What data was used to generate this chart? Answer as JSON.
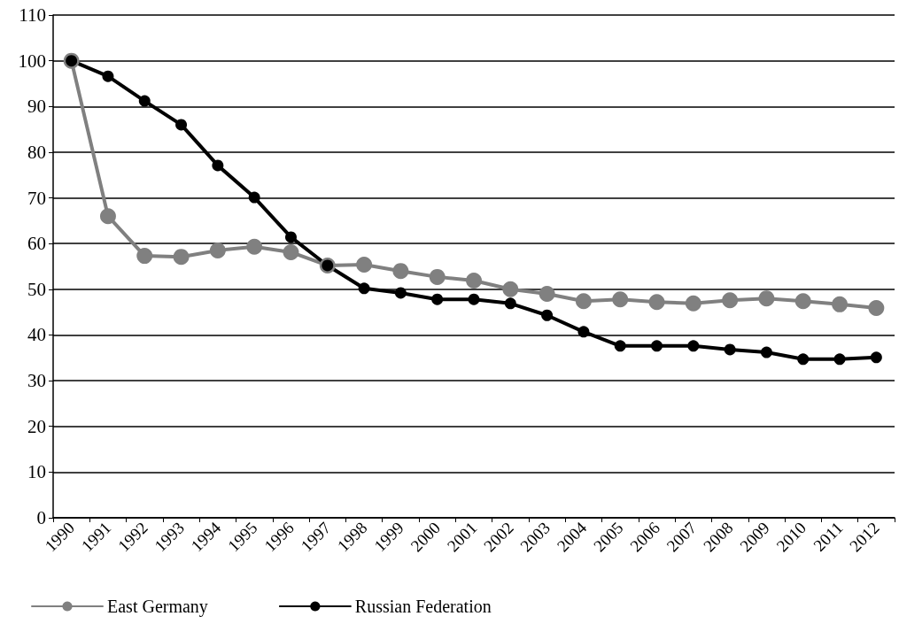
{
  "chart_data": {
    "type": "line",
    "categories": [
      "1990",
      "1991",
      "1992",
      "1993",
      "1994",
      "1995",
      "1996",
      "1997",
      "1998",
      "1999",
      "2000",
      "2001",
      "2002",
      "2003",
      "2004",
      "2005",
      "2006",
      "2007",
      "2008",
      "2009",
      "2010",
      "2011",
      "2012"
    ],
    "series": [
      {
        "name": "East Germany",
        "color": "#808080",
        "values": [
          100,
          66.0,
          57.3,
          57.1,
          58.5,
          59.3,
          58.1,
          55.2,
          55.4,
          54.0,
          52.7,
          51.9,
          50.0,
          49.0,
          47.4,
          47.8,
          47.2,
          46.9,
          47.6,
          48.0,
          47.4,
          46.7,
          45.9
        ]
      },
      {
        "name": "Russian Federation",
        "color": "#000000",
        "values": [
          100,
          96.6,
          91.2,
          86.0,
          77.1,
          70.1,
          61.4,
          55.2,
          50.2,
          49.2,
          47.8,
          47.8,
          46.9,
          44.3,
          40.7,
          37.6,
          37.6,
          37.6,
          36.8,
          36.2,
          34.7,
          34.7,
          35.1
        ]
      }
    ],
    "ylim": [
      0,
      110
    ],
    "yticks": [
      0,
      10,
      20,
      30,
      40,
      50,
      60,
      70,
      80,
      90,
      100,
      110
    ],
    "grid": "y",
    "legend": "bottom left",
    "marker": "circle",
    "line_style": "solid"
  }
}
